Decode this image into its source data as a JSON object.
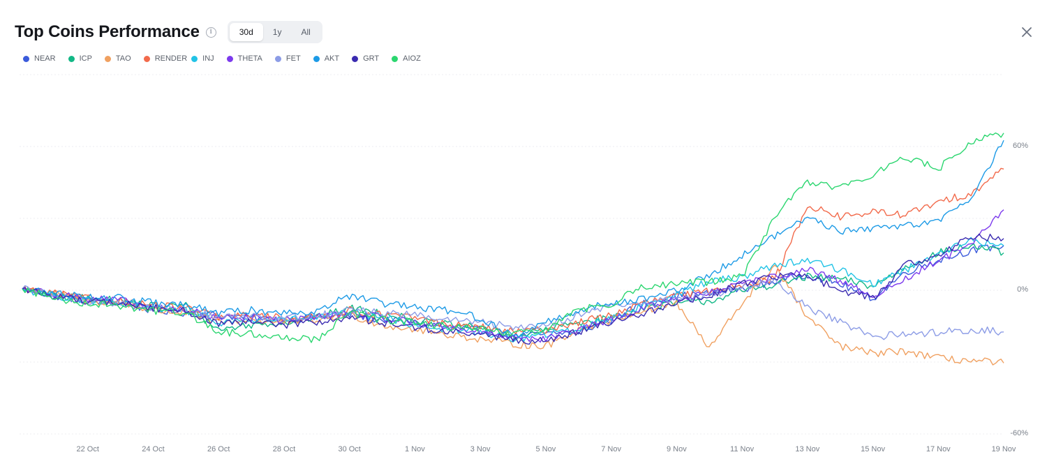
{
  "header": {
    "title": "Top Coins Performance",
    "info_icon": "info-icon",
    "close_icon": "close-icon",
    "ranges": [
      {
        "label": "30d",
        "active": true
      },
      {
        "label": "1y",
        "active": false
      },
      {
        "label": "All",
        "active": false
      }
    ]
  },
  "chart_data": {
    "type": "line",
    "title": "Top Coins Performance",
    "x_start": "2024-10-20",
    "x_end": "2024-11-19",
    "ylim": [
      -60,
      60
    ],
    "yticks": [
      {
        "value": 60,
        "label": "60%"
      },
      {
        "value": 0,
        "label": "0%"
      },
      {
        "value": -60,
        "label": "-60%"
      }
    ],
    "xticks": [
      {
        "date": "2024-10-22",
        "label": "22 Oct"
      },
      {
        "date": "2024-10-24",
        "label": "24 Oct"
      },
      {
        "date": "2024-10-26",
        "label": "26 Oct"
      },
      {
        "date": "2024-10-28",
        "label": "28 Oct"
      },
      {
        "date": "2024-10-30",
        "label": "30 Oct"
      },
      {
        "date": "2024-11-01",
        "label": "1 Nov"
      },
      {
        "date": "2024-11-03",
        "label": "3 Nov"
      },
      {
        "date": "2024-11-05",
        "label": "5 Nov"
      },
      {
        "date": "2024-11-07",
        "label": "7 Nov"
      },
      {
        "date": "2024-11-09",
        "label": "9 Nov"
      },
      {
        "date": "2024-11-11",
        "label": "11 Nov"
      },
      {
        "date": "2024-11-13",
        "label": "13 Nov"
      },
      {
        "date": "2024-11-15",
        "label": "15 Nov"
      },
      {
        "date": "2024-11-17",
        "label": "17 Nov"
      },
      {
        "date": "2024-11-19",
        "label": "19 Nov"
      }
    ],
    "grid": true,
    "legend_position": "top-left",
    "x": [
      "2024-10-20",
      "2024-10-21",
      "2024-10-22",
      "2024-10-23",
      "2024-10-24",
      "2024-10-25",
      "2024-10-26",
      "2024-10-27",
      "2024-10-28",
      "2024-10-29",
      "2024-10-30",
      "2024-10-31",
      "2024-11-01",
      "2024-11-02",
      "2024-11-03",
      "2024-11-04",
      "2024-11-05",
      "2024-11-06",
      "2024-11-07",
      "2024-11-08",
      "2024-11-09",
      "2024-11-10",
      "2024-11-11",
      "2024-11-12",
      "2024-11-13",
      "2024-11-14",
      "2024-11-15",
      "2024-11-16",
      "2024-11-17",
      "2024-11-18",
      "2024-11-19"
    ],
    "series": [
      {
        "name": "NEAR",
        "color": "#3b5bdb",
        "values": [
          0,
          -3,
          -5,
          -6,
          -9,
          -10,
          -11,
          -12,
          -13,
          -12,
          -11,
          -13,
          -14,
          -16,
          -17,
          -20,
          -19,
          -18,
          -13,
          -6,
          -3,
          -2,
          0,
          3,
          6,
          2,
          -4,
          7,
          12,
          16,
          18
        ]
      },
      {
        "name": "ICP",
        "color": "#12b886",
        "values": [
          0,
          -3,
          -4,
          -5,
          -7,
          -7,
          -17,
          -15,
          -14,
          -12,
          -8,
          -10,
          -13,
          -15,
          -16,
          -20,
          -17,
          -14,
          -12,
          -8,
          -6,
          -5,
          -1,
          2,
          5,
          4,
          1,
          9,
          15,
          18,
          15
        ]
      },
      {
        "name": "TAO",
        "color": "#f0a060",
        "values": [
          0,
          -2,
          -5,
          -6,
          -9,
          -10,
          -14,
          -13,
          -14,
          -13,
          -11,
          -15,
          -17,
          -19,
          -21,
          -23,
          -24,
          -17,
          -13,
          -9,
          -6,
          -25,
          -6,
          10,
          -12,
          -24,
          -27,
          -26,
          -29,
          -30,
          -31
        ]
      },
      {
        "name": "RENDER",
        "color": "#f26a4b",
        "values": [
          0,
          -2,
          -4,
          -5,
          -7,
          -8,
          -12,
          -11,
          -12,
          -12,
          -9,
          -11,
          -12,
          -15,
          -16,
          -18,
          -17,
          -14,
          -11,
          -6,
          -3,
          -1,
          2,
          4,
          35,
          30,
          32,
          31,
          36,
          40,
          50
        ]
      },
      {
        "name": "INJ",
        "color": "#22c3e6",
        "values": [
          0,
          -3,
          -5,
          -6,
          -8,
          -9,
          -14,
          -13,
          -13,
          -12,
          -10,
          -12,
          -15,
          -17,
          -18,
          -21,
          -19,
          -17,
          -12,
          -7,
          -2,
          3,
          5,
          10,
          12,
          8,
          2,
          8,
          15,
          20,
          18
        ]
      },
      {
        "name": "THETA",
        "color": "#7c3aed",
        "values": [
          0,
          -2,
          -4,
          -5,
          -8,
          -9,
          -12,
          -12,
          -13,
          -12,
          -10,
          -12,
          -14,
          -16,
          -18,
          -20,
          -21,
          -17,
          -13,
          -8,
          -4,
          -2,
          2,
          5,
          8,
          3,
          -3,
          4,
          12,
          18,
          33
        ]
      },
      {
        "name": "FET",
        "color": "#8c9ce6",
        "values": [
          0,
          -3,
          -5,
          -6,
          -8,
          -9,
          -12,
          -11,
          -12,
          -11,
          -9,
          -10,
          -11,
          -13,
          -14,
          -16,
          -15,
          -11,
          -7,
          -6,
          -4,
          -3,
          1,
          3,
          -8,
          -14,
          -20,
          -19,
          -18,
          -17,
          -18
        ]
      },
      {
        "name": "AKT",
        "color": "#1c9ae6",
        "values": [
          0,
          -2,
          -3,
          -4,
          -6,
          -7,
          -10,
          -9,
          -10,
          -9,
          -3,
          -6,
          -8,
          -9,
          -12,
          -20,
          -14,
          -9,
          -6,
          -4,
          -1,
          6,
          14,
          22,
          30,
          24,
          25,
          27,
          28,
          38,
          62
        ]
      },
      {
        "name": "GRT",
        "color": "#3a2ab0",
        "values": [
          0,
          -3,
          -5,
          -6,
          -8,
          -9,
          -15,
          -14,
          -15,
          -14,
          -12,
          -14,
          -16,
          -18,
          -19,
          -21,
          -22,
          -18,
          -14,
          -10,
          -6,
          -3,
          2,
          5,
          6,
          -1,
          -4,
          10,
          14,
          22,
          21
        ]
      },
      {
        "name": "AIOZ",
        "color": "#2bd66f",
        "values": [
          0,
          -4,
          -6,
          -7,
          -9,
          -10,
          -18,
          -19,
          -20,
          -21,
          -10,
          -13,
          -14,
          -16,
          -17,
          -19,
          -17,
          -9,
          -6,
          1,
          2,
          3,
          5,
          30,
          45,
          42,
          48,
          55,
          50,
          62,
          65
        ]
      }
    ]
  }
}
